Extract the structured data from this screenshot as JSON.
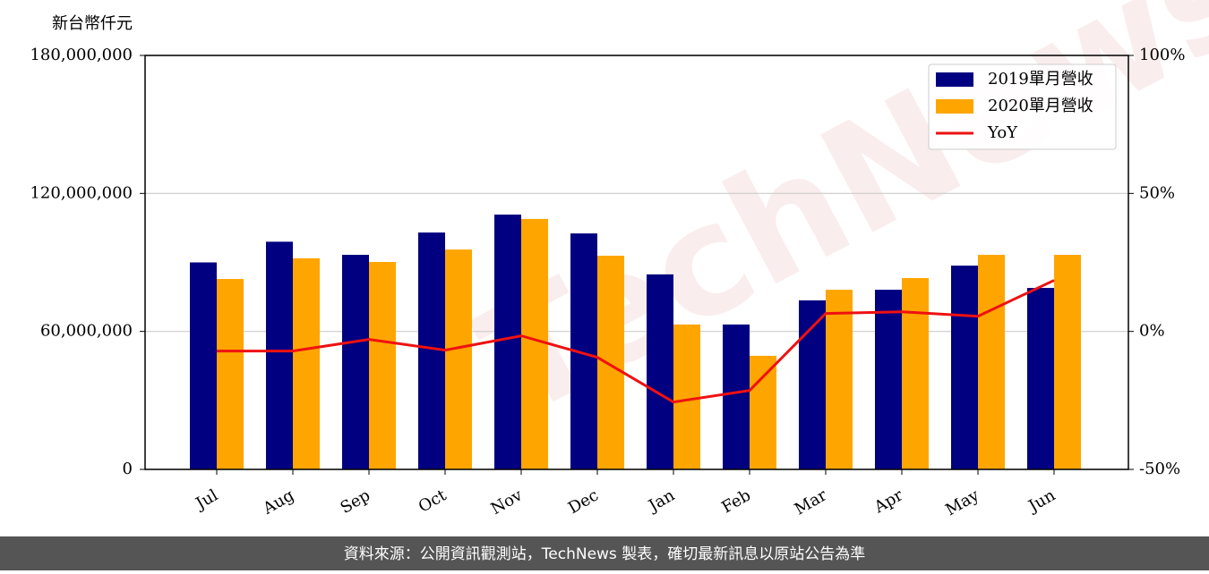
{
  "chart_data": {
    "type": "bar_line",
    "y_label": "新台幣仟元",
    "watermark": "TechNews",
    "source": "資料來源：公開資訊觀測站，TechNews 製表，確切最新訊息以原站公告為準",
    "categories": [
      "Jul",
      "Aug",
      "Sep",
      "Oct",
      "Nov",
      "Dec",
      "Jan",
      "Feb",
      "Mar",
      "Apr",
      "May",
      "Jun"
    ],
    "series": [
      {
        "name": "2019單月營收",
        "color": "#000080",
        "values": [
          90000000,
          99000000,
          93300000,
          103000000,
          110800000,
          102600000,
          84800000,
          63000000,
          73500000,
          78100000,
          88600000,
          78900000
        ]
      },
      {
        "name": "2020單月營收",
        "color": "#ffa500",
        "values": [
          82800000,
          91800000,
          90200000,
          95600000,
          108900000,
          92900000,
          63000000,
          49400000,
          78100000,
          83200000,
          93300000,
          93300000
        ]
      },
      {
        "name": "YoY",
        "color": "#ee1111",
        "axis": "y2",
        "values": [
          -7.1,
          -7.1,
          -2.9,
          -6.8,
          -1.6,
          -9.4,
          -25.6,
          -21.4,
          6.5,
          7.1,
          5.5,
          18.5
        ]
      }
    ],
    "ylim": [
      0,
      180000000
    ],
    "yticks": [
      0,
      {
        "value": 60000000,
        "label": "60,000,000"
      },
      {
        "value": 120000000,
        "label": "120,000,000"
      },
      {
        "value": 180000000,
        "label": "180,000,000"
      }
    ],
    "y2lim": [
      -50,
      100
    ],
    "y2ticks": [
      {
        "value": -50,
        "label": "-50%"
      },
      {
        "value": 0,
        "label": "0%"
      },
      {
        "value": 50,
        "label": "50%"
      },
      {
        "value": 100,
        "label": "100%"
      }
    ],
    "grid": true,
    "legend": "upper right"
  }
}
